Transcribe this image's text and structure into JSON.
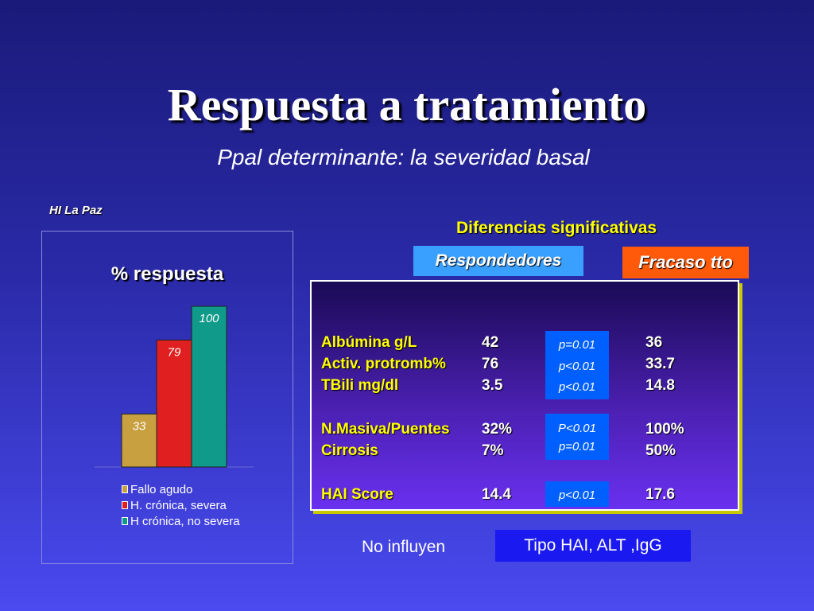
{
  "slide": {
    "title": "Respuesta a tratamiento",
    "subtitle": "Ppal determinante: la severidad basal",
    "source": "HI La Paz"
  },
  "chart_data": {
    "type": "bar",
    "title": "% respuesta",
    "categories": [
      "Fallo agudo",
      "H. crónica, severa",
      "H crónica, no severa"
    ],
    "values": [
      33,
      79,
      100
    ],
    "data_labels": [
      "33",
      "79",
      "100"
    ],
    "colors": [
      "#c8a040",
      "#e02020",
      "#109a8a"
    ],
    "ylim": [
      0,
      100
    ],
    "grid": false,
    "legend": "bottom"
  },
  "legend": {
    "items": [
      "Fallo agudo",
      "H. crónica, severa",
      "H crónica, no severa"
    ]
  },
  "comparison": {
    "header": "Diferencias significativas",
    "group_a": "Respondedores",
    "group_b": "Fracaso tto",
    "rows": [
      {
        "label": "Albúmina g/L",
        "a": "42",
        "p": "p=0.01",
        "b": "36"
      },
      {
        "label": "Activ. protromb%",
        "a": "76",
        "p": "p<0.01",
        "b": "33.7"
      },
      {
        "label": "TBili mg/dl",
        "a": "3.5",
        "p": "p<0.01",
        "b": "14.8"
      },
      {
        "label": "N.Masiva/Puentes",
        "a": "32%",
        "p": "P<0.01",
        "b": "100%"
      },
      {
        "label": "Cirrosis",
        "a": "7%",
        "p": "p=0.01",
        "b": "50%"
      },
      {
        "label": "HAI Score",
        "a": "14.4",
        "p": "p<0.01",
        "b": "17.6"
      }
    ]
  },
  "footer": {
    "no_influyen": "No influyen",
    "factors": "Tipo HAI, ALT ,IgG"
  },
  "colors": {
    "background_top": "#1a1a7a",
    "background_bottom": "#4a4af0",
    "highlight_yellow": "#ffff00",
    "respondedores": "#3aa0ff",
    "fracaso": "#ff5a0a",
    "p_value_box": "#0060ff"
  }
}
